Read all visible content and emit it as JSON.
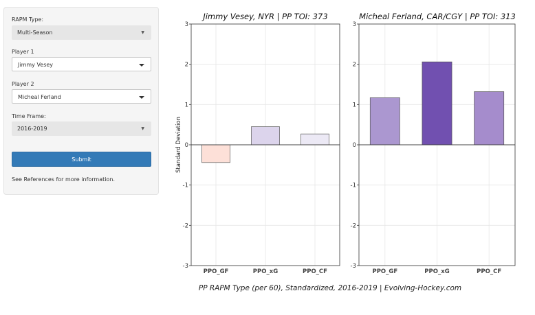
{
  "sidebar": {
    "rapm_type": {
      "label": "RAPM Type:",
      "value": "Multi-Season"
    },
    "player1": {
      "label": "Player 1",
      "value": "Jimmy Vesey"
    },
    "player2": {
      "label": "Player 2",
      "value": "Micheal Ferland"
    },
    "time_frame": {
      "label": "Time Frame:",
      "value": "2016-2019"
    },
    "submit_label": "Submit",
    "note": "See References for more information."
  },
  "chart_data": [
    {
      "type": "bar",
      "title": "Jimmy Vesey, NYR  |  PP TOI: 373",
      "categories": [
        "PPO_GF",
        "PPO_xG",
        "PPO_CF"
      ],
      "values": [
        -0.44,
        0.45,
        0.27
      ],
      "colors": [
        "#fde0d8",
        "#dcd4ec",
        "#ece9f5"
      ],
      "ylabel": "Standard Deviation",
      "ylim": [
        -3,
        3
      ],
      "yticks": [
        -3,
        -2,
        -1,
        0,
        1,
        2,
        3
      ],
      "grid": true
    },
    {
      "type": "bar",
      "title": "Micheal Ferland, CAR/CGY  |  PP TOI: 313",
      "categories": [
        "PPO_GF",
        "PPO_xG",
        "PPO_CF"
      ],
      "values": [
        1.17,
        2.06,
        1.32
      ],
      "colors": [
        "#ab97d0",
        "#7150b0",
        "#a58ccc"
      ],
      "ylabel": "",
      "ylim": [
        -3,
        3
      ],
      "yticks": [
        -3,
        -2,
        -1,
        0,
        1,
        2,
        3
      ],
      "grid": true
    }
  ],
  "caption": "PP RAPM Type (per 60), Standardized, 2016-2019    |    Evolving-Hockey.com"
}
